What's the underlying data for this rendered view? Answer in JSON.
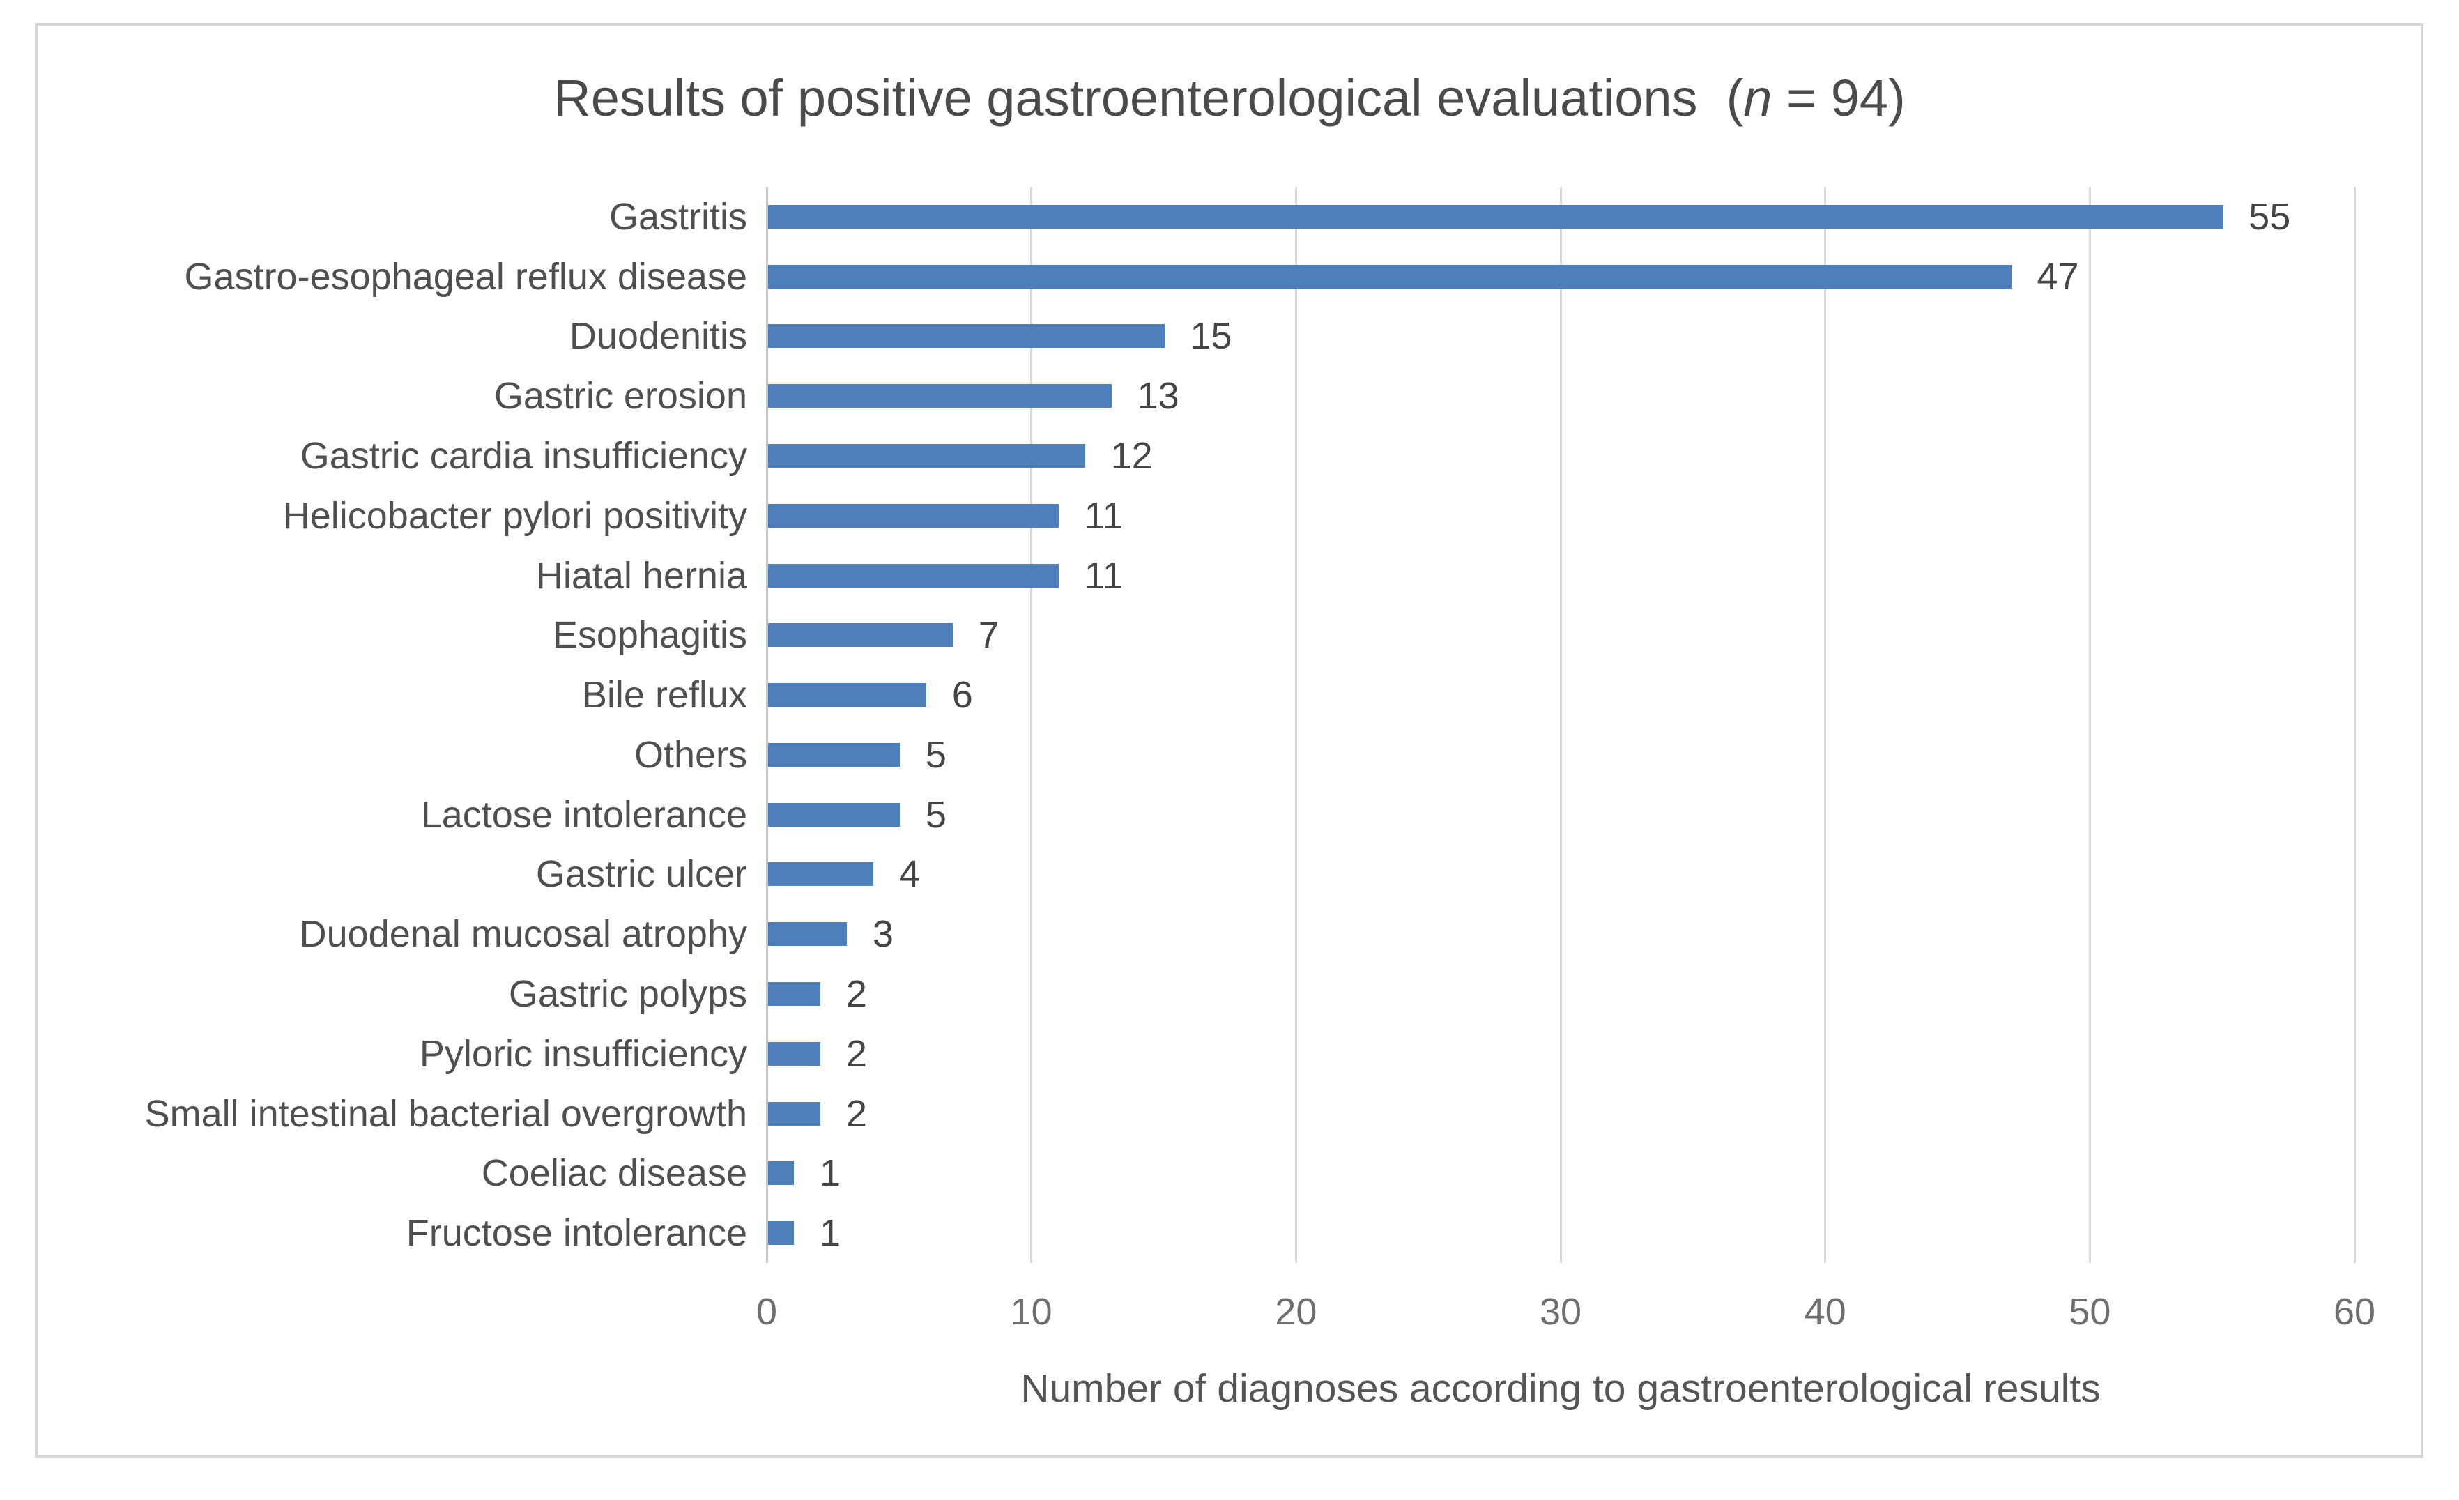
{
  "chart_data": {
    "type": "bar",
    "orientation": "horizontal",
    "title": "Results of positive gastroenterological evaluations (n = 94)",
    "title_parts": {
      "prefix": "Results of positive gastroenterological evaluations  (",
      "italic": "n",
      "suffix": " = 94)"
    },
    "categories": [
      "Gastritis",
      "Gastro-esophageal reflux disease",
      "Duodenitis",
      "Gastric erosion",
      "Gastric cardia insufficiency",
      "Helicobacter pylori positivity",
      "Hiatal hernia",
      "Esophagitis",
      "Bile reflux",
      "Others",
      "Lactose intolerance",
      "Gastric ulcer",
      "Duodenal mucosal atrophy",
      "Gastric polyps",
      "Pyloric insufficiency",
      "Small intestinal bacterial overgrowth",
      "Coeliac disease",
      "Fructose intolerance"
    ],
    "values": [
      55,
      47,
      15,
      13,
      12,
      11,
      11,
      7,
      6,
      5,
      5,
      4,
      3,
      2,
      2,
      2,
      1,
      1
    ],
    "xlabel": "Number of diagnoses according to gastroenterological results",
    "xlim": [
      0,
      60
    ],
    "xticks": [
      0,
      10,
      20,
      30,
      40,
      50,
      60
    ],
    "grid": "vertical-gridlines",
    "legend": "none",
    "data_labels": "shown-at-bar-end",
    "bar_color": "#4e7fbd",
    "gridline_color": "#d9d9d9",
    "axis_line_color": "#c6c6c6",
    "label_text_color": "#4f4f4f",
    "tick_text_color": "#6e6e6e"
  }
}
